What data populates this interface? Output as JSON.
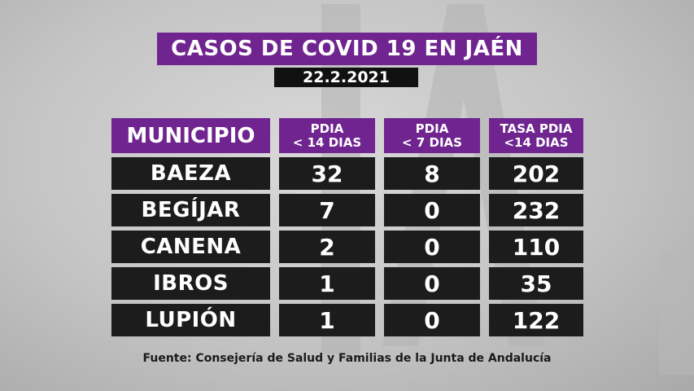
{
  "title": "CASOS DE COVID 19 EN JAÉN",
  "date": "22.2.2021",
  "table": {
    "headers": {
      "municipio": "MUNICIPIO",
      "pdia14_line1": "PDIA",
      "pdia14_line2": "< 14 DIAS",
      "pdia7_line1": "PDIA",
      "pdia7_line2": "< 7 DIAS",
      "tasa_line1": "TASA PDIA",
      "tasa_line2": "<14 DIAS"
    },
    "rows": [
      {
        "municipio": "BAEZA",
        "pdia14": "32",
        "pdia7": "8",
        "tasa": "202"
      },
      {
        "municipio": "BEGÍJAR",
        "pdia14": "7",
        "pdia7": "0",
        "tasa": "232"
      },
      {
        "municipio": "CANENA",
        "pdia14": "2",
        "pdia7": "0",
        "tasa": "110"
      },
      {
        "municipio": "IBROS",
        "pdia14": "1",
        "pdia7": "0",
        "tasa": "35"
      },
      {
        "municipio": "LUPIÓN",
        "pdia14": "1",
        "pdia7": "0",
        "tasa": "122"
      }
    ]
  },
  "source": "Fuente: Consejería de Salud y Familias de la Junta de Andalucía",
  "colors": {
    "purple": "#6f2490",
    "dark": "#1c1c1c"
  }
}
